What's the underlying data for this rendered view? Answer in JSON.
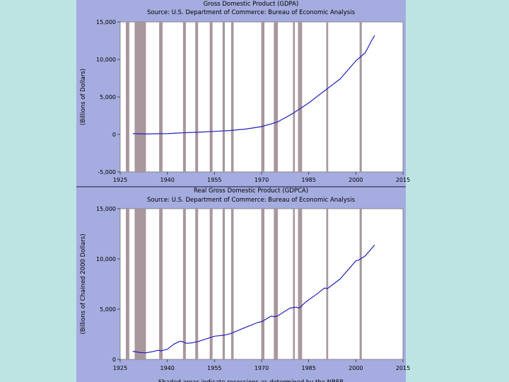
{
  "colors": {
    "page_bg": "#bde3e3",
    "panel_bg": "#a5acdf",
    "plot_bg": "#ffffff",
    "recession": "#a8979d",
    "line": "#2020c0"
  },
  "recessions": [
    [
      1926.8,
      1927.9
    ],
    [
      1929.6,
      1933.2
    ],
    [
      1937.4,
      1938.5
    ],
    [
      1945.0,
      1945.9
    ],
    [
      1948.9,
      1949.8
    ],
    [
      1953.5,
      1954.4
    ],
    [
      1957.6,
      1958.3
    ],
    [
      1960.3,
      1961.1
    ],
    [
      1969.9,
      1970.9
    ],
    [
      1973.9,
      1975.2
    ],
    [
      1980.0,
      1980.6
    ],
    [
      1981.6,
      1982.9
    ],
    [
      1990.6,
      1991.2
    ],
    [
      2001.2,
      2001.9
    ]
  ],
  "footnote": "Shaded areas indicate recessions as determined by the NBER",
  "chart_data": [
    {
      "type": "line",
      "title": "Gross Domestic Product (GDPA)",
      "subtitle": "Source: U.S. Department of Commerce: Bureau of Economic Analysis",
      "ylabel": "(Billions of Dollars)",
      "xlabel": "",
      "xlim": [
        1925,
        2015
      ],
      "ylim": [
        -5000,
        15000
      ],
      "xticks": [
        1925,
        1940,
        1955,
        1970,
        1985,
        2000,
        2015
      ],
      "xtick_labels": [
        "1925",
        "1940",
        "1955",
        "1970",
        "1985",
        "2000",
        "2015"
      ],
      "yticks": [
        -5000,
        0,
        5000,
        10000,
        15000
      ],
      "ytick_labels": [
        "-5,000",
        "0",
        "5,000",
        "10,000",
        "15,000"
      ],
      "series": [
        {
          "name": "GDPA",
          "x": [
            1929,
            1933,
            1937,
            1940,
            1945,
            1950,
            1955,
            1960,
            1965,
            1970,
            1975,
            1980,
            1985,
            1990,
            1995,
            2000,
            2003,
            2005,
            2006
          ],
          "y": [
            100,
            60,
            90,
            100,
            220,
            290,
            410,
            520,
            720,
            1040,
            1640,
            2800,
            4200,
            5800,
            7400,
            9800,
            10900,
            12500,
            13200
          ]
        }
      ]
    },
    {
      "type": "line",
      "title": "Real Gross Domestic Product (GDPCA)",
      "subtitle": "Source: U.S. Department of Commerce: Bureau of Economic Analysis",
      "ylabel": "(Billions of Chained 2000 Dollars)",
      "xlabel": "",
      "xlim": [
        1925,
        2015
      ],
      "ylim": [
        0,
        15000
      ],
      "xticks": [
        1925,
        1940,
        1955,
        1970,
        1985,
        2000,
        2015
      ],
      "xtick_labels": [
        "1925",
        "1940",
        "1955",
        "1970",
        "1985",
        "2000",
        "2015"
      ],
      "yticks": [
        0,
        5000,
        10000,
        15000
      ],
      "ytick_labels": [
        "0",
        "5,000",
        "10,000",
        "15,000"
      ],
      "series": [
        {
          "name": "GDPCA",
          "x": [
            1929,
            1931,
            1933,
            1935,
            1937,
            1938,
            1940,
            1942,
            1944,
            1945,
            1946,
            1948,
            1950,
            1953,
            1955,
            1958,
            1960,
            1965,
            1969,
            1970,
            1973,
            1974,
            1975,
            1979,
            1980,
            1981,
            1982,
            1984,
            1988,
            1990,
            1991,
            1995,
            2000,
            2001,
            2003,
            2006
          ],
          "y": [
            800,
            700,
            650,
            750,
            900,
            850,
            1000,
            1500,
            1800,
            1750,
            1600,
            1650,
            1800,
            2100,
            2300,
            2400,
            2550,
            3200,
            3700,
            3750,
            4300,
            4250,
            4300,
            5100,
            5150,
            5200,
            5100,
            5700,
            6600,
            7100,
            7050,
            8000,
            9800,
            9900,
            10300,
            11400
          ]
        }
      ]
    }
  ]
}
